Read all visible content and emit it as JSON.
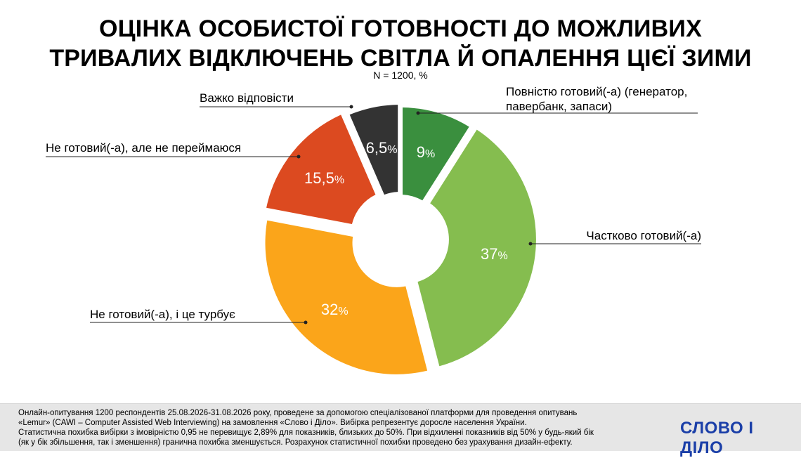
{
  "title_line1": "ОЦІНКА ОСОБИСТОЇ ГОТОВНОСТІ ДО МОЖЛИВИХ",
  "title_line2": "ТРИВАЛИХ ВІДКЛЮЧЕНЬ СВІТЛА Й ОПАЛЕННЯ ЦІЄЇ ЗИМИ",
  "subtitle": "N = 1200, %",
  "chart_data": {
    "type": "pie",
    "variant": "donut",
    "unit": "%",
    "slices": [
      {
        "label": "Повністю готовий(-а) (генератор, павербанк, запаси)",
        "label_lines": [
          "Повністю готовий(-а) (генератор,",
          "павербанк, запаси)"
        ],
        "value": 9,
        "value_text": "9",
        "color": "#3a8f3e"
      },
      {
        "label": "Частково готовий(-а)",
        "label_lines": [
          "Частково готовий(-а)"
        ],
        "value": 37,
        "value_text": "37",
        "color": "#85bd4f"
      },
      {
        "label": "Не готовий(-а), і це турбує",
        "label_lines": [
          "Не готовий(-а), і це турбує"
        ],
        "value": 32,
        "value_text": "32",
        "color": "#fba51a"
      },
      {
        "label": "Не готовий(-а), але не переймаюся",
        "label_lines": [
          "Не готовий(-а), але не переймаюся"
        ],
        "value": 15.5,
        "value_text": "15,5",
        "color": "#dc4a20"
      },
      {
        "label": "Важко відповісти",
        "label_lines": [
          "Важко відповісти"
        ],
        "value": 6.5,
        "value_text": "6,5",
        "color": "#333333"
      }
    ]
  },
  "footer": {
    "lines": [
      "Онлайн-опитування 1200 респондентів 25.08.2026-31.08.2026 року, проведене за допомогою спеціалізованої платформи для проведення опитувань",
      "«Lemur» (CAWI – Computer Assisted Web Interviewing) на замовлення «Слово і Діло». Вибірка репрезентує доросле населення України.",
      "Статистична похибка вибірки з імовірністю 0,95 не перевищує 2,89% для показників, близьких до 50%. При відхиленні показників від 50% у будь-який бік",
      "(як у бік збільшення, так і зменшення) гранична похибка зменшується. Розрахунок статистичної похибки проведено без урахування дизайн-ефекту."
    ]
  },
  "logo_text": "СЛОВО І ДІЛО",
  "colors": {
    "logo": "#1b3fa8",
    "footer_bg": "#e6e6e6",
    "leader": "#222222"
  }
}
